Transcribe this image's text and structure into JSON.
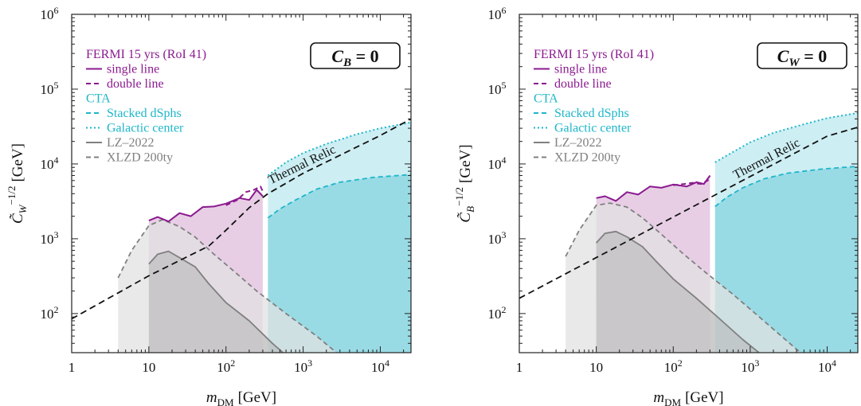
{
  "colors": {
    "fermi": "#8b1a8f",
    "fermi_fill": "#e3c5e0",
    "cta": "#1eb6c9",
    "cta_fill": "#99dbe5",
    "cta_fill_light": "#cdeef3",
    "lz": "#7a7a7a",
    "dd_fill": "#e2e2e2",
    "dd_fill_dark": "#b5b5b5",
    "relic": "#111111"
  },
  "legend": {
    "fermi_title": "FERMI 15 yrs (RoI 41)",
    "single_line": "single line",
    "double_line": "double line",
    "cta_title": "CTA",
    "stacked": "Stacked dSphs",
    "gc": "Galactic center",
    "lz": "LZ–2022",
    "xlzd": "XLZD 200ty"
  },
  "chart_data": [
    {
      "type": "line",
      "box_label": "C",
      "box_sub": "B",
      "box_eq": " = 0",
      "xlabel_main": "m",
      "xlabel_sub": "DM",
      "xlabel_unit": "[GeV]",
      "ylabel_main": "C̃",
      "ylabel_sub": "W",
      "ylabel_sup": "−1/2",
      "ylabel_unit": "[GeV]",
      "x_log": true,
      "y_log": true,
      "xlim": [
        1,
        25000
      ],
      "ylim": [
        30,
        1000000
      ],
      "x_ticks": [
        {
          "v": 1,
          "t": "1"
        },
        {
          "v": 10,
          "t": "10"
        },
        {
          "v": 100,
          "t": "10",
          "e": "2"
        },
        {
          "v": 1000,
          "t": "10",
          "e": "3"
        },
        {
          "v": 10000,
          "t": "10",
          "e": "4"
        }
      ],
      "y_ticks": [
        {
          "v": 100,
          "t": "10",
          "e": "2"
        },
        {
          "v": 1000,
          "t": "10",
          "e": "3"
        },
        {
          "v": 10000,
          "t": "10",
          "e": "4"
        },
        {
          "v": 100000,
          "t": "10",
          "e": "5"
        },
        {
          "v": 1000000,
          "t": "10",
          "e": "6"
        }
      ],
      "relic_label": "Thermal Relic",
      "thermal_relic": [
        [
          1,
          85
        ],
        [
          10,
          320
        ],
        [
          60,
          800
        ],
        [
          100,
          1300
        ],
        [
          200,
          2600
        ],
        [
          350,
          4000
        ],
        [
          1000,
          7500
        ],
        [
          10000,
          24000
        ],
        [
          25000,
          40000
        ]
      ],
      "fermi_single": [
        [
          10,
          1750
        ],
        [
          13,
          1950
        ],
        [
          18,
          1700
        ],
        [
          25,
          2200
        ],
        [
          35,
          2000
        ],
        [
          50,
          2650
        ],
        [
          70,
          2700
        ],
        [
          100,
          2950
        ],
        [
          150,
          3500
        ],
        [
          200,
          3300
        ],
        [
          250,
          4500
        ],
        [
          300,
          3700
        ]
      ],
      "fermi_double": [
        [
          100,
          2800
        ],
        [
          140,
          3300
        ],
        [
          180,
          4200
        ],
        [
          230,
          4500
        ],
        [
          280,
          5000
        ],
        [
          300,
          4300
        ]
      ],
      "cta_dsph": [
        [
          350,
          1900
        ],
        [
          500,
          2500
        ],
        [
          800,
          3300
        ],
        [
          1500,
          4600
        ],
        [
          3000,
          5700
        ],
        [
          8000,
          6600
        ],
        [
          25000,
          7200
        ]
      ],
      "cta_gc": [
        [
          350,
          7000
        ],
        [
          600,
          10500
        ],
        [
          1000,
          14000
        ],
        [
          2000,
          18500
        ],
        [
          5000,
          25000
        ],
        [
          10000,
          30000
        ],
        [
          25000,
          36000
        ]
      ],
      "lz": [
        [
          10,
          460
        ],
        [
          13,
          620
        ],
        [
          18,
          680
        ],
        [
          25,
          560
        ],
        [
          40,
          420
        ],
        [
          60,
          250
        ],
        [
          100,
          140
        ],
        [
          200,
          80
        ],
        [
          400,
          40
        ],
        [
          550,
          30
        ]
      ],
      "xlzd": [
        [
          4,
          300
        ],
        [
          6,
          700
        ],
        [
          10,
          1500
        ],
        [
          15,
          1800
        ],
        [
          25,
          1450
        ],
        [
          40,
          1050
        ],
        [
          70,
          620
        ],
        [
          130,
          360
        ],
        [
          250,
          200
        ],
        [
          600,
          100
        ],
        [
          1500,
          50
        ],
        [
          2700,
          30
        ]
      ]
    },
    {
      "type": "line",
      "box_label": "C",
      "box_sub": "W",
      "box_eq": " = 0",
      "xlabel_main": "m",
      "xlabel_sub": "DM",
      "xlabel_unit": "[GeV]",
      "ylabel_main": "C̃",
      "ylabel_sub": "B",
      "ylabel_sup": "−1/2",
      "ylabel_unit": "[GeV]",
      "x_log": true,
      "y_log": true,
      "xlim": [
        1,
        25000
      ],
      "ylim": [
        30,
        1000000
      ],
      "x_ticks": [
        {
          "v": 1,
          "t": "1"
        },
        {
          "v": 10,
          "t": "10"
        },
        {
          "v": 100,
          "t": "10",
          "e": "2"
        },
        {
          "v": 1000,
          "t": "10",
          "e": "3"
        },
        {
          "v": 10000,
          "t": "10",
          "e": "4"
        }
      ],
      "y_ticks": [
        {
          "v": 100,
          "t": "10",
          "e": "2"
        },
        {
          "v": 1000,
          "t": "10",
          "e": "3"
        },
        {
          "v": 10000,
          "t": "10",
          "e": "4"
        },
        {
          "v": 100000,
          "t": "10",
          "e": "5"
        },
        {
          "v": 1000000,
          "t": "10",
          "e": "6"
        }
      ],
      "relic_label": "Thermal Relic",
      "thermal_relic": [
        [
          1,
          160
        ],
        [
          10,
          560
        ],
        [
          100,
          1950
        ],
        [
          1000,
          6800
        ],
        [
          10000,
          23500
        ],
        [
          25000,
          31000
        ]
      ],
      "fermi_single": [
        [
          10,
          3500
        ],
        [
          13,
          3700
        ],
        [
          18,
          3200
        ],
        [
          25,
          4200
        ],
        [
          35,
          3900
        ],
        [
          50,
          5000
        ],
        [
          70,
          4800
        ],
        [
          100,
          5300
        ],
        [
          150,
          5000
        ],
        [
          200,
          5700
        ],
        [
          250,
          5400
        ],
        [
          300,
          7000
        ]
      ],
      "fermi_double": [
        [
          100,
          5200
        ],
        [
          140,
          5400
        ],
        [
          180,
          5600
        ],
        [
          230,
          5400
        ],
        [
          280,
          6000
        ],
        [
          300,
          6800
        ]
      ],
      "cta_dsph": [
        [
          350,
          2700
        ],
        [
          500,
          3600
        ],
        [
          800,
          4800
        ],
        [
          1500,
          6300
        ],
        [
          3000,
          7500
        ],
        [
          8000,
          8500
        ],
        [
          25000,
          9300
        ]
      ],
      "cta_gc": [
        [
          350,
          10500
        ],
        [
          600,
          14500
        ],
        [
          1000,
          19500
        ],
        [
          2000,
          26000
        ],
        [
          5000,
          34000
        ],
        [
          10000,
          41000
        ],
        [
          25000,
          48000
        ]
      ],
      "lz": [
        [
          10,
          880
        ],
        [
          13,
          1180
        ],
        [
          18,
          1250
        ],
        [
          25,
          1060
        ],
        [
          40,
          780
        ],
        [
          60,
          500
        ],
        [
          100,
          290
        ],
        [
          200,
          160
        ],
        [
          400,
          85
        ],
        [
          800,
          45
        ],
        [
          1300,
          30
        ]
      ],
      "xlzd": [
        [
          4,
          580
        ],
        [
          6,
          1300
        ],
        [
          10,
          2800
        ],
        [
          15,
          3000
        ],
        [
          25,
          2650
        ],
        [
          40,
          1900
        ],
        [
          70,
          1150
        ],
        [
          130,
          650
        ],
        [
          250,
          370
        ],
        [
          600,
          180
        ],
        [
          1500,
          80
        ],
        [
          4500,
          30
        ]
      ]
    }
  ]
}
